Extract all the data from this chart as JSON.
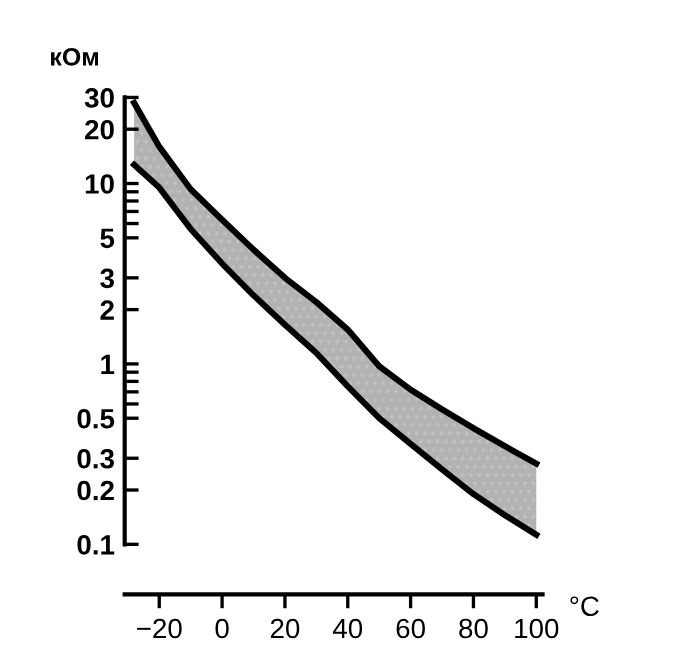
{
  "chart_data": {
    "type": "line",
    "ylabel": "кОм",
    "xlabel": "°C",
    "log": "y",
    "x": [
      -28,
      -20,
      -10,
      0,
      10,
      20,
      30,
      40,
      50,
      60,
      70,
      80,
      90,
      100
    ],
    "series": [
      {
        "color": "#000000",
        "values": [
          28,
          16,
          9.3,
          6.3,
          4.3,
          3.0,
          2.2,
          1.55,
          0.97,
          0.72,
          0.56,
          0.44,
          0.35,
          0.28
        ],
        "lower": [
          12.7,
          9.5,
          5.6,
          3.6,
          2.4,
          1.65,
          1.15,
          0.75,
          0.5,
          0.36,
          0.26,
          0.19,
          0.145,
          0.113
        ],
        "upper": [
          28,
          16,
          9.3,
          6.3,
          4.3,
          3.0,
          2.2,
          1.55,
          0.97,
          0.72,
          0.56,
          0.44,
          0.35,
          0.28
        ]
      },
      {
        "color": "#000000",
        "values": [
          12.7,
          9.5,
          5.6,
          3.6,
          2.4,
          1.65,
          1.15,
          0.75,
          0.5,
          0.36,
          0.26,
          0.19,
          0.145,
          0.113
        ]
      }
    ],
    "xlim": [
      -31,
      102
    ],
    "xticks": [
      {
        "value": -20,
        "label": "−20"
      },
      0,
      20,
      40,
      60,
      80,
      100
    ],
    "ylim": [
      0.1,
      30
    ],
    "yticks": [
      0.1,
      0.2,
      0.3,
      0.5,
      {
        "value": 0.6,
        "label": null
      },
      {
        "value": 0.7,
        "label": null
      },
      {
        "value": 0.8,
        "label": null
      },
      {
        "value": 0.9,
        "label": null
      },
      1,
      2,
      3,
      5,
      {
        "value": 6,
        "label": null
      },
      {
        "value": 7,
        "label": null
      },
      {
        "value": 8,
        "label": null
      },
      {
        "value": 9,
        "label": null
      },
      10,
      20,
      30
    ],
    "grid": false,
    "legend": false,
    "marker": "none",
    "line_style": "solid"
  }
}
